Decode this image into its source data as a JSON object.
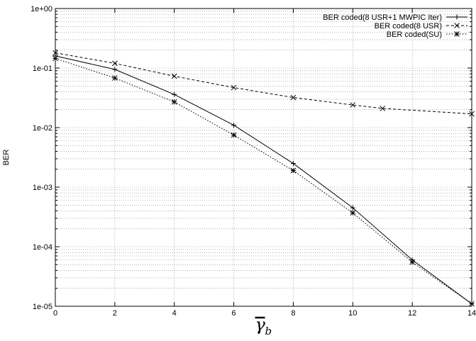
{
  "chart_data": {
    "type": "line",
    "title": "",
    "xlabel": "γ",
    "xlabel_subscript": "b",
    "ylabel": "BER",
    "xlim": [
      0,
      14
    ],
    "ylim": [
      1e-05,
      1
    ],
    "yscale": "log",
    "grid": true,
    "legend_position": "top-right",
    "x_ticks": [
      0,
      2,
      4,
      6,
      8,
      10,
      12,
      14
    ],
    "y_ticks": [
      1e-05,
      0.0001,
      0.001,
      0.01,
      0.1,
      1
    ],
    "x_tick_labels": [
      "0",
      "2",
      "4",
      "6",
      "8",
      "10",
      "12",
      "14"
    ],
    "y_tick_labels": [
      "1e-05",
      "1e-04",
      "1e-03",
      "1e-02",
      "1e-01",
      "1e+00"
    ],
    "series": [
      {
        "name": "BER coded(8 USR+1 MWPIC Iter)",
        "line": "solid",
        "marker": "plus",
        "x": [
          0,
          2,
          4,
          6,
          8,
          10,
          12,
          14
        ],
        "y": [
          0.16,
          0.095,
          0.036,
          0.011,
          0.0025,
          0.00045,
          6e-05,
          1.1e-05
        ]
      },
      {
        "name": "BER coded(8 USR)",
        "line": "dashed",
        "marker": "x",
        "x": [
          0,
          2,
          4,
          6,
          8,
          10,
          11,
          14
        ],
        "y": [
          0.18,
          0.12,
          0.073,
          0.047,
          0.032,
          0.024,
          0.021,
          0.017
        ]
      },
      {
        "name": "BER coded(SU)",
        "line": "dotted",
        "marker": "star",
        "x": [
          0,
          2,
          4,
          6,
          8,
          10,
          12,
          14
        ],
        "y": [
          0.145,
          0.068,
          0.027,
          0.0075,
          0.0019,
          0.00037,
          5.5e-05,
          1.1e-05
        ]
      }
    ]
  }
}
